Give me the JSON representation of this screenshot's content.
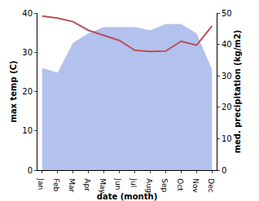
{
  "chart_data": {
    "type": "line",
    "categories": [
      "Jan",
      "Feb",
      "Mar",
      "Apr",
      "May",
      "Jun",
      "Jul",
      "Aug",
      "Sep",
      "Oct",
      "Nov",
      "Dec"
    ],
    "x_label": "date (month)",
    "y_label": "max temp (C)",
    "y2_label": "med. precipitation (kg/m2)",
    "series": [
      {
        "name": "med. precipitation",
        "type": "area",
        "axis": "y2",
        "color": "#b3c1ee",
        "values": [
          32.5,
          31,
          40.5,
          43.5,
          45.5,
          45.5,
          45.5,
          44.5,
          46.5,
          46.5,
          43.5,
          32
        ]
      },
      {
        "name": "max temp",
        "type": "line",
        "color": "#b5535b",
        "values": [
          39.2,
          38.7,
          37.8,
          35.6,
          34.3,
          33.0,
          30.5,
          30.2,
          30.3,
          32.8,
          31.8,
          36.7
        ]
      }
    ],
    "ylim": [
      0,
      40
    ],
    "yticks": [
      0,
      10,
      20,
      30,
      40
    ],
    "y2lim": [
      0,
      50
    ],
    "y2ticks": [
      0,
      10,
      20,
      30,
      40,
      50
    ],
    "grid": false
  }
}
